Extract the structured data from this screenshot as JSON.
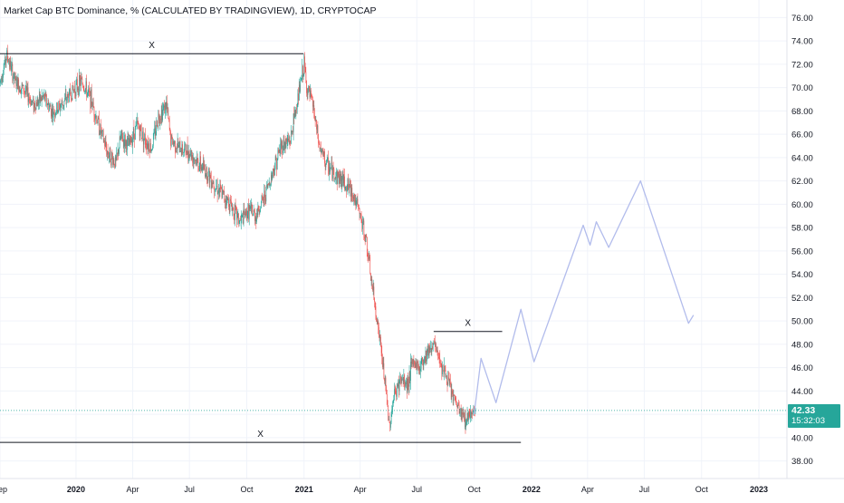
{
  "header": {
    "title": "Market Cap BTC Dominance, % (CALCULATED BY TRADINGVIEW), 1D, CRYPTOCAP"
  },
  "price_tag": {
    "price": "42.33",
    "countdown": "15:32:03",
    "color": "#26a69a"
  },
  "colors": {
    "up": "#26a69a",
    "down": "#ef5350",
    "projection": "#b2bcec",
    "axis_text": "#131722",
    "grid": "#f0f3fa",
    "current_line": "#26a69a"
  },
  "chart_data": {
    "type": "candlestick",
    "y_axis": {
      "position": "right",
      "range": [
        36.5,
        77.5
      ],
      "ticks": [
        "38.00",
        "40.00",
        "42.00",
        "44.00",
        "46.00",
        "48.00",
        "50.00",
        "52.00",
        "54.00",
        "56.00",
        "58.00",
        "60.00",
        "62.00",
        "64.00",
        "66.00",
        "68.00",
        "70.00",
        "72.00",
        "74.00",
        "76.00"
      ]
    },
    "x_axis": {
      "range": [
        "2019-09-01",
        "2023-02-15"
      ],
      "ticks": [
        {
          "date": "2019-09-01",
          "label": "Sep",
          "bold": false
        },
        {
          "date": "2020-01-01",
          "label": "2020",
          "bold": true
        },
        {
          "date": "2020-04-01",
          "label": "Apr",
          "bold": false
        },
        {
          "date": "2020-07-01",
          "label": "Jul",
          "bold": false
        },
        {
          "date": "2020-10-01",
          "label": "Oct",
          "bold": false
        },
        {
          "date": "2021-01-01",
          "label": "2021",
          "bold": true
        },
        {
          "date": "2021-04-01",
          "label": "Apr",
          "bold": false
        },
        {
          "date": "2021-07-01",
          "label": "Jul",
          "bold": false
        },
        {
          "date": "2021-10-01",
          "label": "Oct",
          "bold": false
        },
        {
          "date": "2022-01-01",
          "label": "2022",
          "bold": true
        },
        {
          "date": "2022-04-01",
          "label": "Apr",
          "bold": false
        },
        {
          "date": "2022-07-01",
          "label": "Jul",
          "bold": false
        },
        {
          "date": "2022-10-01",
          "label": "Oct",
          "bold": false
        },
        {
          "date": "2023-01-01",
          "label": "2023",
          "bold": true
        }
      ]
    },
    "price_path": [
      [
        "2019-09-01",
        70.5
      ],
      [
        "2019-09-12",
        72.8
      ],
      [
        "2019-09-25",
        70.5
      ],
      [
        "2019-10-10",
        69.8
      ],
      [
        "2019-10-25",
        68.5
      ],
      [
        "2019-11-10",
        69.2
      ],
      [
        "2019-11-25",
        67.8
      ],
      [
        "2019-12-10",
        68.6
      ],
      [
        "2019-12-28",
        69.8
      ],
      [
        "2020-01-10",
        70.5
      ],
      [
        "2020-01-25",
        69.0
      ],
      [
        "2020-02-05",
        67.0
      ],
      [
        "2020-02-20",
        64.5
      ],
      [
        "2020-03-05",
        63.5
      ],
      [
        "2020-03-13",
        65.8
      ],
      [
        "2020-03-25",
        65.0
      ],
      [
        "2020-04-08",
        66.8
      ],
      [
        "2020-04-20",
        65.6
      ],
      [
        "2020-05-01",
        64.8
      ],
      [
        "2020-05-12",
        67.5
      ],
      [
        "2020-05-25",
        68.5
      ],
      [
        "2020-06-01",
        65.5
      ],
      [
        "2020-06-15",
        64.8
      ],
      [
        "2020-07-01",
        64.5
      ],
      [
        "2020-07-15",
        63.5
      ],
      [
        "2020-07-25",
        63.0
      ],
      [
        "2020-08-05",
        62.2
      ],
      [
        "2020-08-20",
        61.0
      ],
      [
        "2020-09-05",
        60.0
      ],
      [
        "2020-09-20",
        58.5
      ],
      [
        "2020-10-05",
        59.5
      ],
      [
        "2020-10-15",
        59.0
      ],
      [
        "2020-10-28",
        60.5
      ],
      [
        "2020-11-10",
        62.5
      ],
      [
        "2020-11-25",
        65.0
      ],
      [
        "2020-12-10",
        65.5
      ],
      [
        "2020-12-20",
        68.5
      ],
      [
        "2021-01-01",
        72.0
      ],
      [
        "2021-01-05",
        70.0
      ],
      [
        "2021-01-15",
        68.5
      ],
      [
        "2021-01-25",
        65.0
      ],
      [
        "2021-02-05",
        63.5
      ],
      [
        "2021-02-20",
        62.5
      ],
      [
        "2021-03-05",
        62.0
      ],
      [
        "2021-03-20",
        61.0
      ],
      [
        "2021-04-01",
        59.0
      ],
      [
        "2021-04-10",
        57.0
      ],
      [
        "2021-04-20",
        53.0
      ],
      [
        "2021-05-01",
        49.0
      ],
      [
        "2021-05-10",
        45.0
      ],
      [
        "2021-05-18",
        41.0
      ],
      [
        "2021-05-25",
        43.5
      ],
      [
        "2021-06-05",
        45.0
      ],
      [
        "2021-06-15",
        44.5
      ],
      [
        "2021-06-25",
        46.5
      ],
      [
        "2021-07-05",
        46.0
      ],
      [
        "2021-07-18",
        47.5
      ],
      [
        "2021-07-28",
        48.0
      ],
      [
        "2021-08-05",
        47.0
      ],
      [
        "2021-08-15",
        45.5
      ],
      [
        "2021-08-28",
        43.5
      ],
      [
        "2021-09-10",
        42.0
      ],
      [
        "2021-09-18",
        41.5
      ],
      [
        "2021-09-25",
        42.3
      ],
      [
        "2021-10-03",
        42.33
      ]
    ],
    "projection_path": [
      [
        "2021-10-01",
        42.0
      ],
      [
        "2021-10-12",
        46.8
      ],
      [
        "2021-11-05",
        43.0
      ],
      [
        "2021-12-15",
        51.0
      ],
      [
        "2022-01-05",
        46.5
      ],
      [
        "2022-03-25",
        58.2
      ],
      [
        "2022-04-05",
        56.5
      ],
      [
        "2022-04-15",
        58.5
      ],
      [
        "2022-05-05",
        56.3
      ],
      [
        "2022-06-25",
        62.0
      ],
      [
        "2022-09-10",
        49.8
      ],
      [
        "2022-09-18",
        50.5
      ]
    ],
    "annotations": [
      {
        "type": "hline",
        "label": "X",
        "from": "2019-09-01",
        "to": "2020-12-31",
        "y": 72.9,
        "color": "#131722"
      },
      {
        "type": "hline",
        "label": "X",
        "from": "2021-07-28",
        "to": "2021-11-15",
        "y": 49.1,
        "color": "#131722"
      },
      {
        "type": "hline",
        "label": "X",
        "from": "2019-09-01",
        "to": "2021-12-15",
        "y": 39.6,
        "color": "#131722"
      }
    ],
    "current_price": 42.33
  }
}
